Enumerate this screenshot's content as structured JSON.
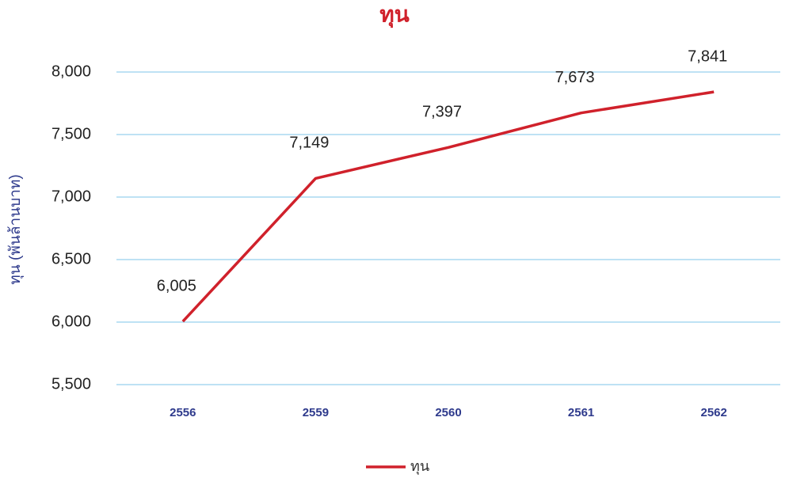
{
  "chart_data": {
    "type": "line",
    "title": "ทุน",
    "y_label": "ทุน (พันล้านบาท)",
    "categories": [
      "2556",
      "2559",
      "2560",
      "2561",
      "2562"
    ],
    "series": [
      {
        "name": "ทุน",
        "color": "#d0212b",
        "values": [
          6005,
          7149,
          7397,
          7673,
          7841
        ],
        "value_labels": [
          "6,005",
          "7,149",
          "7,397",
          "7,673",
          "7,841"
        ]
      }
    ],
    "ylim": [
      5500,
      8000
    ],
    "yticks": [
      {
        "value": 5500,
        "label": "5,500"
      },
      {
        "value": 6000,
        "label": "6,000"
      },
      {
        "value": 6500,
        "label": "6,500"
      },
      {
        "value": 7000,
        "label": "7,000"
      },
      {
        "value": 7500,
        "label": "7,500"
      },
      {
        "value": 8000,
        "label": "8,000"
      }
    ],
    "grid": true,
    "legend": "bottom"
  }
}
